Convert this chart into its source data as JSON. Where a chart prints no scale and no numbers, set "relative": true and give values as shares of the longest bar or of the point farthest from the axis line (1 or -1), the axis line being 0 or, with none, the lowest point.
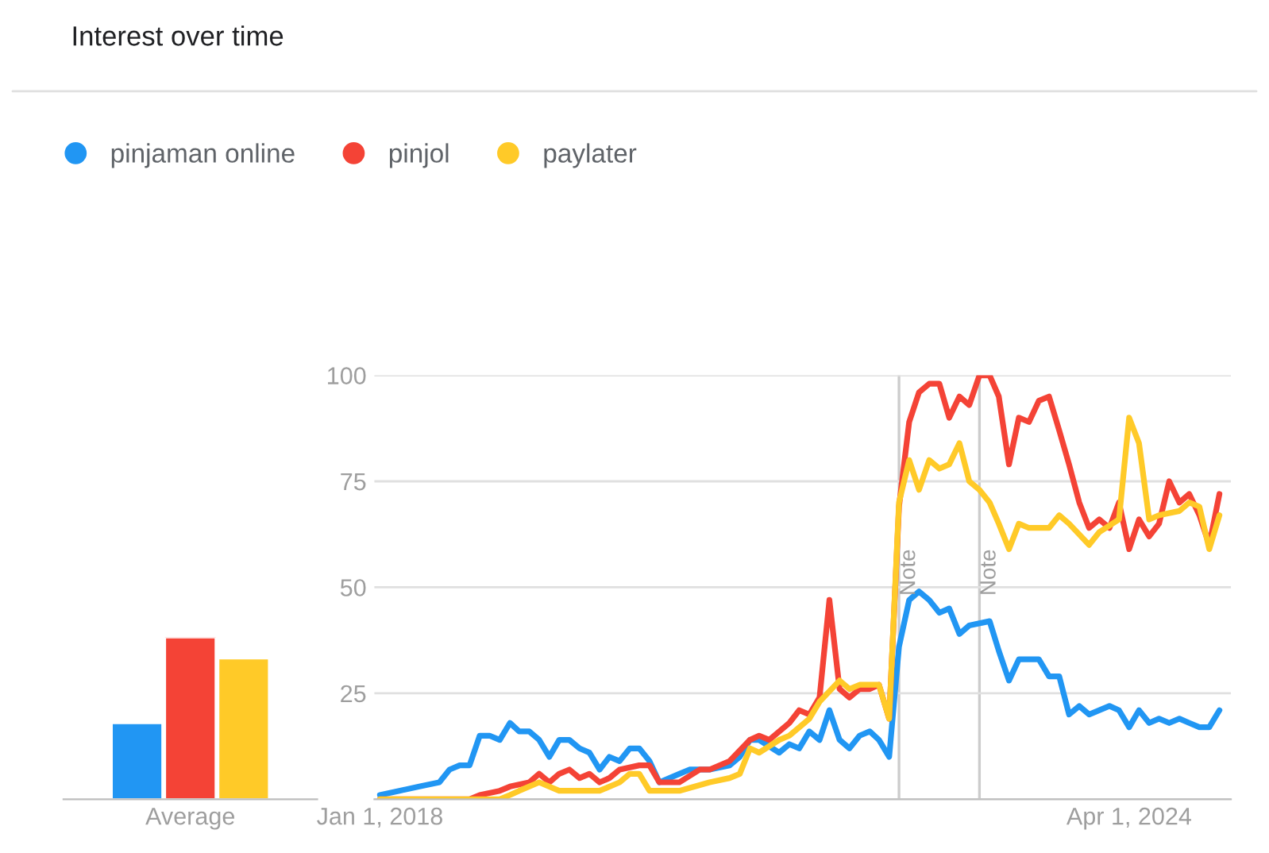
{
  "chart_data": [
    {
      "type": "bar",
      "relative": true,
      "categories": [
        "Average"
      ],
      "tick_labels": "x",
      "series": [
        {
          "color": "#2196f3",
          "values": [
            0.47
          ]
        },
        {
          "color": "#f44336",
          "values": [
            1
          ]
        },
        {
          "color": "#ffca28",
          "values": [
            0.87
          ]
        }
      ]
    },
    {
      "type": "line",
      "title": "Interest over time",
      "legend": "top left",
      "grid": "y",
      "xlim": [
        "2017-12-15",
        "2025-02-05"
      ],
      "ylim": [
        0,
        100
      ],
      "xticks": [
        {
          "value": "2018-01-01",
          "label": "Jan 1, 2018"
        },
        {
          "value": "2024-04-01",
          "label": "Apr 1, 2024"
        }
      ],
      "yticks": [
        {
          "value": 0,
          "label": null
        },
        25,
        50,
        75,
        100
      ],
      "ref_lines": [
        {
          "axis": "x",
          "value": "2022-05-01",
          "label": "Note",
          "color": "#cccccc"
        },
        {
          "axis": "x",
          "value": "2023-01-01",
          "label": "Note",
          "color": "#cccccc"
        }
      ],
      "series": [
        {
          "name": "pinjaman online",
          "color": "#2196f3",
          "x": [
            "2018-01",
            "2018-03",
            "2018-05",
            "2018-07",
            "2018-08",
            "2018-09",
            "2018-10",
            "2018-11",
            "2018-12",
            "2019-01",
            "2019-02",
            "2019-03",
            "2019-04",
            "2019-05",
            "2019-06",
            "2019-07",
            "2019-08",
            "2019-09",
            "2019-10",
            "2019-11",
            "2019-12",
            "2020-01",
            "2020-02",
            "2020-03",
            "2020-04",
            "2020-05",
            "2020-07",
            "2020-08",
            "2020-10",
            "2020-12",
            "2021-01",
            "2021-02",
            "2021-03",
            "2021-05",
            "2021-06",
            "2021-07",
            "2021-08",
            "2021-09",
            "2021-10",
            "2021-11",
            "2021-12",
            "2022-01",
            "2022-02",
            "2022-03",
            "2022-04",
            "2022-05",
            "2022-06",
            "2022-07",
            "2022-08",
            "2022-09",
            "2022-10",
            "2022-11",
            "2022-12",
            "2023-02",
            "2023-03",
            "2023-04",
            "2023-05",
            "2023-07",
            "2023-08",
            "2023-09",
            "2023-10",
            "2023-11",
            "2023-12",
            "2024-02",
            "2024-03",
            "2024-04",
            "2024-05",
            "2024-06",
            "2024-07",
            "2024-08",
            "2024-09",
            "2024-10",
            "2024-11",
            "2024-12",
            "2025-01"
          ],
          "values": [
            1,
            2,
            3,
            4,
            7,
            8,
            8,
            15,
            15,
            14,
            18,
            16,
            16,
            14,
            10,
            14,
            14,
            12,
            11,
            7,
            10,
            9,
            12,
            12,
            9,
            4,
            6,
            7,
            7,
            8,
            10,
            14,
            14,
            11,
            13,
            12,
            16,
            14,
            21,
            14,
            12,
            15,
            16,
            14,
            10,
            36,
            47,
            49,
            47,
            44,
            45,
            39,
            41,
            42,
            35,
            28,
            33,
            33,
            29,
            29,
            20,
            22,
            20,
            22,
            21,
            17,
            21,
            18,
            19,
            18,
            19,
            18,
            17,
            17,
            21
          ]
        },
        {
          "name": "pinjol",
          "color": "#f44336",
          "x": [
            "2018-01",
            "2018-10",
            "2018-11",
            "2019-01",
            "2019-02",
            "2019-04",
            "2019-05",
            "2019-06",
            "2019-07",
            "2019-08",
            "2019-09",
            "2019-10",
            "2019-11",
            "2019-12",
            "2020-01",
            "2020-03",
            "2020-04",
            "2020-05",
            "2020-07",
            "2020-09",
            "2020-10",
            "2020-12",
            "2021-02",
            "2021-03",
            "2021-04",
            "2021-06",
            "2021-07",
            "2021-08",
            "2021-09",
            "2021-10",
            "2021-11",
            "2021-12",
            "2022-01",
            "2022-02",
            "2022-03",
            "2022-04",
            "2022-05",
            "2022-06",
            "2022-07",
            "2022-08",
            "2022-09",
            "2022-10",
            "2022-11",
            "2022-12",
            "2023-01",
            "2023-02",
            "2023-03",
            "2023-04",
            "2023-05",
            "2023-06",
            "2023-07",
            "2023-08",
            "2023-09",
            "2023-10",
            "2023-11",
            "2023-12",
            "2024-01",
            "2024-02",
            "2024-03",
            "2024-04",
            "2024-05",
            "2024-06",
            "2024-07",
            "2024-08",
            "2024-09",
            "2024-10",
            "2024-11",
            "2024-12",
            "2025-01"
          ],
          "values": [
            0,
            0,
            1,
            2,
            3,
            4,
            6,
            4,
            6,
            7,
            5,
            6,
            4,
            5,
            7,
            8,
            8,
            4,
            4,
            7,
            7,
            9,
            14,
            15,
            14,
            18,
            21,
            20,
            24,
            47,
            26,
            24,
            26,
            26,
            27,
            19,
            69,
            89,
            96,
            98,
            98,
            90,
            95,
            93,
            100,
            100,
            95,
            79,
            90,
            89,
            94,
            95,
            87,
            79,
            70,
            64,
            66,
            64,
            70,
            59,
            66,
            62,
            65,
            75,
            70,
            72,
            67,
            60,
            72
          ]
        },
        {
          "name": "paylater",
          "color": "#ffca28",
          "x": [
            "2018-01",
            "2019-01",
            "2019-02",
            "2019-03",
            "2019-05",
            "2019-07",
            "2019-11",
            "2020-01",
            "2020-02",
            "2020-03",
            "2020-04",
            "2020-07",
            "2020-10",
            "2020-12",
            "2021-01",
            "2021-02",
            "2021-03",
            "2021-05",
            "2021-06",
            "2021-08",
            "2021-09",
            "2021-11",
            "2021-12",
            "2022-01",
            "2022-03",
            "2022-04",
            "2022-05",
            "2022-06",
            "2022-07",
            "2022-08",
            "2022-09",
            "2022-10",
            "2022-11",
            "2022-12",
            "2023-01",
            "2023-02",
            "2023-03",
            "2023-04",
            "2023-05",
            "2023-06",
            "2023-08",
            "2023-09",
            "2023-10",
            "2023-12",
            "2024-01",
            "2024-03",
            "2024-04",
            "2024-05",
            "2024-06",
            "2024-07",
            "2024-09",
            "2024-10",
            "2024-11",
            "2024-12",
            "2025-01"
          ],
          "values": [
            0,
            0,
            1,
            2,
            4,
            2,
            2,
            4,
            6,
            6,
            2,
            2,
            4,
            5,
            6,
            12,
            11,
            14,
            15,
            19,
            23,
            28,
            26,
            27,
            27,
            19,
            70,
            80,
            73,
            80,
            78,
            79,
            84,
            75,
            73,
            70,
            65,
            59,
            65,
            64,
            64,
            67,
            65,
            60,
            63,
            66,
            90,
            84,
            66,
            67,
            68,
            70,
            69,
            59,
            67
          ]
        }
      ]
    }
  ]
}
